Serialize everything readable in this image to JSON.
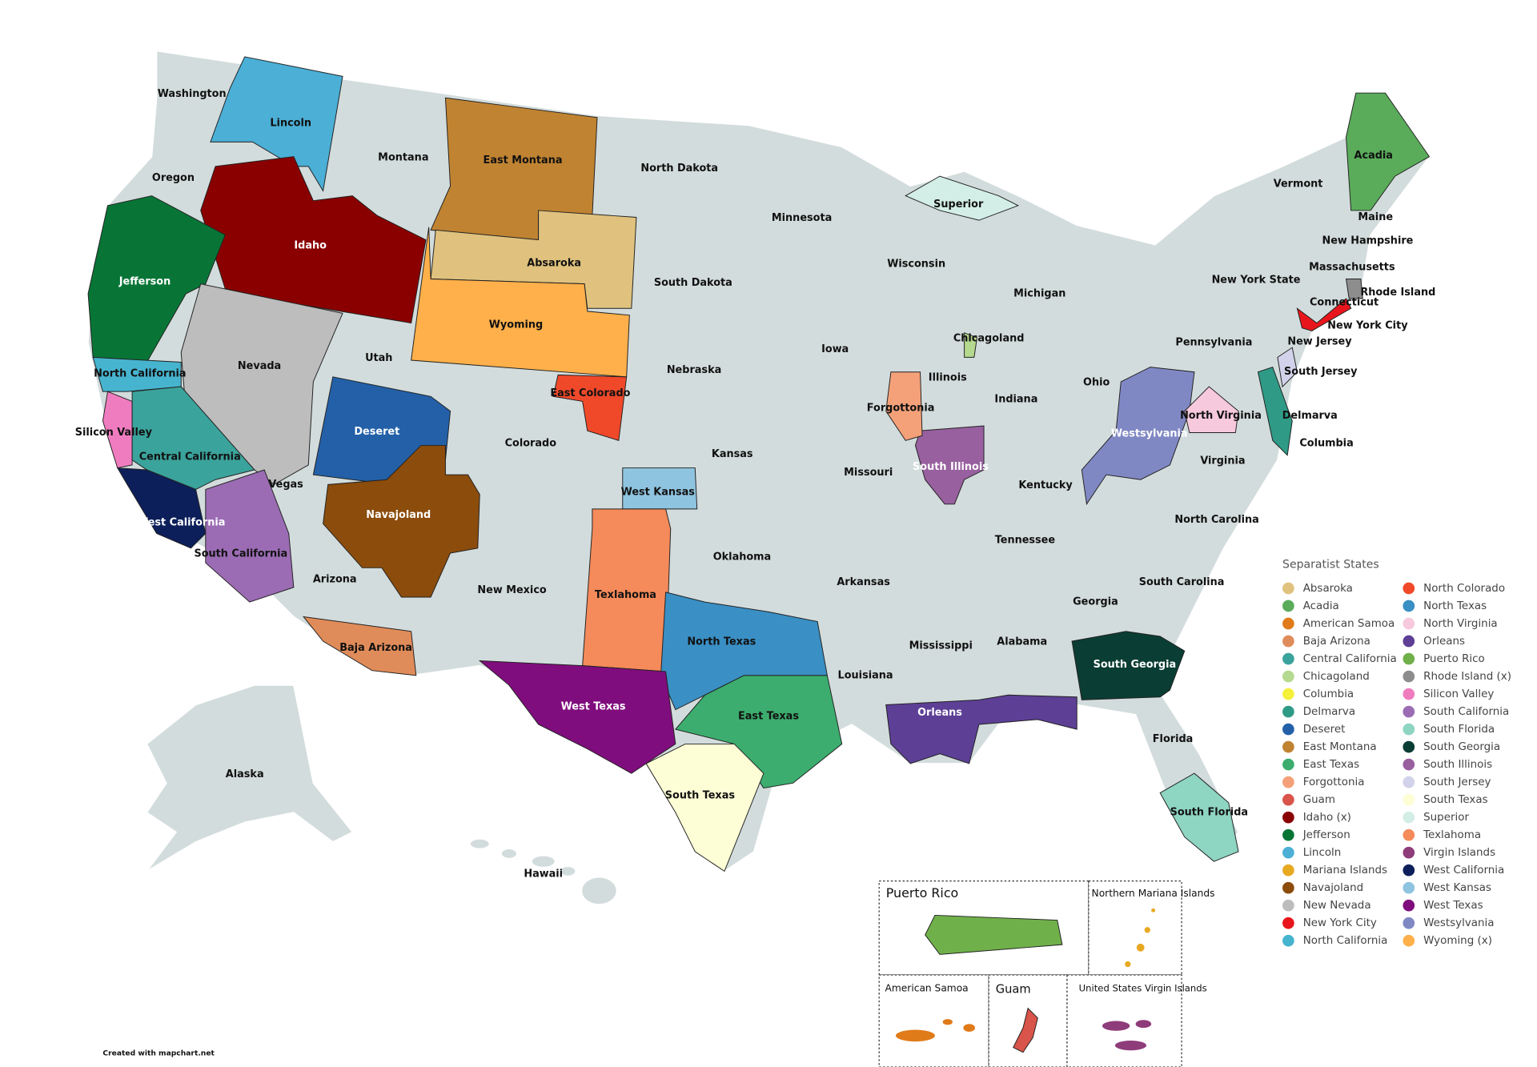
{
  "map": {
    "labels": [
      "Washington",
      "Lincoln",
      "Montana",
      "East Montana",
      "North Dakota",
      "Minnesota",
      "Oregon",
      "Idaho",
      "Absaroka",
      "Wisconsin",
      "Superior",
      "Michigan",
      "Jefferson",
      "South Dakota",
      "Nevada",
      "Utah",
      "Wyoming",
      "Nebraska",
      "Iowa",
      "Chicagoland",
      "Illinois",
      "North California",
      "Deseret",
      "East Colorado",
      "Colorado",
      "Kansas",
      "Forgottonia",
      "Indiana",
      "Ohio",
      "Pennsylvania",
      "New York State",
      "Vermont",
      "Acadia",
      "Maine",
      "New Hampshire",
      "Massachusetts",
      "Rhode Island",
      "Connecticut",
      "New York City",
      "New Jersey",
      "South Jersey",
      "Delmarva",
      "Columbia",
      "North Virginia",
      "Silicon Valley",
      "Central California",
      "Vegas",
      "Westsylvania",
      "South Illinois",
      "Missouri",
      "Kentucky",
      "Virginia",
      "West Kansas",
      "Navajoland",
      "West California",
      "North Carolina",
      "Tennessee",
      "South California",
      "Oklahoma",
      "Arizona",
      "New Mexico",
      "Texlahoma",
      "Arkansas",
      "South Carolina",
      "Georgia",
      "Mississippi",
      "Alabama",
      "North Texas",
      "Baja Arizona",
      "South Georgia",
      "Louisiana",
      "West Texas",
      "Orleans",
      "East Texas",
      "Florida",
      "Alaska",
      "South Texas",
      "South Florida",
      "Hawaii"
    ]
  },
  "legend": {
    "title": "Separatist States",
    "items": [
      {
        "name": "Absaroka",
        "color": "#e0c27e"
      },
      {
        "name": "Acadia",
        "color": "#5aac5a"
      },
      {
        "name": "American Samoa",
        "color": "#e07b1a"
      },
      {
        "name": "Baja Arizona",
        "color": "#e08c5a"
      },
      {
        "name": "Central California",
        "color": "#3aa39b"
      },
      {
        "name": "Chicagoland",
        "color": "#b5d98e"
      },
      {
        "name": "Columbia",
        "color": "#f5f03a"
      },
      {
        "name": "Delmarva",
        "color": "#2f9a86"
      },
      {
        "name": "Deseret",
        "color": "#2360a8"
      },
      {
        "name": "East Montana",
        "color": "#c08332"
      },
      {
        "name": "East Texas",
        "color": "#3cad6e"
      },
      {
        "name": "Forgottonia",
        "color": "#f4a17a"
      },
      {
        "name": "Guam",
        "color": "#d9544a"
      },
      {
        "name": "Idaho (x)",
        "color": "#8a0000"
      },
      {
        "name": "Jefferson",
        "color": "#087536"
      },
      {
        "name": "Lincoln",
        "color": "#4bafd6"
      },
      {
        "name": "Mariana Islands",
        "color": "#e8a922"
      },
      {
        "name": "Navajoland",
        "color": "#8b4c0c"
      },
      {
        "name": "New Nevada",
        "color": "#bdbdbd"
      },
      {
        "name": "New York City",
        "color": "#e8161c"
      },
      {
        "name": "North California",
        "color": "#47b4cf"
      },
      {
        "name": "North Colorado",
        "color": "#f0492a"
      },
      {
        "name": "North Texas",
        "color": "#3a8fc4"
      },
      {
        "name": "North Virginia",
        "color": "#f7c9dc"
      },
      {
        "name": "Orleans",
        "color": "#5d3f96"
      },
      {
        "name": "Puerto Rico",
        "color": "#70b04a"
      },
      {
        "name": "Rhode Island (x)",
        "color": "#8d8d8d"
      },
      {
        "name": "Silicon Valley",
        "color": "#f07cc0"
      },
      {
        "name": "South California",
        "color": "#9b6cb4"
      },
      {
        "name": "South Florida",
        "color": "#8ed5c2"
      },
      {
        "name": "South Georgia",
        "color": "#0a3d33"
      },
      {
        "name": "South Illinois",
        "color": "#98609f"
      },
      {
        "name": "South Jersey",
        "color": "#d2d2ea"
      },
      {
        "name": "South Texas",
        "color": "#fdfdd6"
      },
      {
        "name": "Superior",
        "color": "#d3eee6"
      },
      {
        "name": "Texlahoma",
        "color": "#f58a5a"
      },
      {
        "name": "Virgin Islands",
        "color": "#8e3c7a"
      },
      {
        "name": "West California",
        "color": "#0c1f5a"
      },
      {
        "name": "West Kansas",
        "color": "#8fc4e0"
      },
      {
        "name": "West Texas",
        "color": "#800d7d"
      },
      {
        "name": "Westsylvania",
        "color": "#8088c4"
      },
      {
        "name": "Wyoming (x)",
        "color": "#ffb04a"
      }
    ]
  },
  "insets": [
    {
      "label": "Puerto Rico"
    },
    {
      "label": "Northern Mariana Islands"
    },
    {
      "label": "American Samoa"
    },
    {
      "label": "Guam"
    },
    {
      "label": "United States Virgin Islands"
    }
  ],
  "credit": "Created with mapchart.net"
}
